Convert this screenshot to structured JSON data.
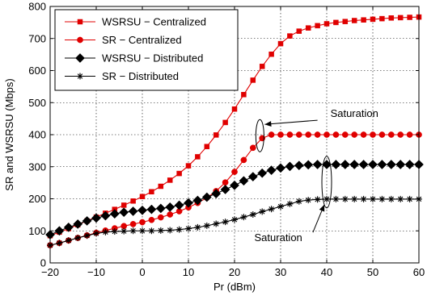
{
  "chart_data": {
    "type": "line",
    "title": "",
    "xlabel": "Pr (dBm)",
    "ylabel": "SR and WSRSU (Mbps)",
    "xlim": [
      -20,
      60
    ],
    "ylim": [
      0,
      800
    ],
    "grid": true,
    "legend_position": "top-left",
    "xticks": [
      -20,
      -10,
      0,
      10,
      20,
      30,
      40,
      50,
      60
    ],
    "yticks": [
      0,
      100,
      200,
      300,
      400,
      500,
      600,
      700,
      800
    ],
    "x": [
      -20,
      -18,
      -16,
      -14,
      -12,
      -10,
      -8,
      -6,
      -4,
      -2,
      0,
      2,
      4,
      6,
      8,
      10,
      12,
      14,
      16,
      18,
      20,
      22,
      24,
      26,
      28,
      30,
      32,
      34,
      36,
      38,
      40,
      42,
      44,
      46,
      48,
      50,
      52,
      54,
      56,
      58,
      60
    ],
    "series": [
      {
        "name": "WSRSU − Centralized",
        "color": "#e00000",
        "marker": "square",
        "values": [
          85,
          96,
          107,
          119,
          131,
          143,
          155,
          167,
          180,
          193,
          207,
          222,
          239,
          258,
          279,
          303,
          331,
          363,
          399,
          438,
          480,
          525,
          570,
          613,
          651,
          684,
          708,
          723,
          733,
          740,
          746,
          750,
          753,
          756,
          758,
          760,
          762,
          764,
          765,
          766,
          767
        ]
      },
      {
        "name": "SR − Centralized",
        "color": "#e00000",
        "marker": "circle",
        "values": [
          55,
          62,
          70,
          78,
          86,
          94,
          101,
          108,
          115,
          121,
          127,
          134,
          142,
          151,
          161,
          173,
          187,
          203,
          224,
          251,
          284,
          321,
          359,
          389,
          400,
          400,
          400,
          400,
          400,
          400,
          400,
          400,
          400,
          400,
          400,
          400,
          400,
          400,
          400,
          400,
          400
        ]
      },
      {
        "name": "WSRSU − Distributed",
        "color": "#000000",
        "marker": "diamond",
        "values": [
          88,
          100,
          111,
          121,
          131,
          140,
          147,
          153,
          158,
          161,
          164,
          167,
          170,
          174,
          180,
          187,
          195,
          205,
          216,
          229,
          242,
          256,
          269,
          280,
          289,
          296,
          301,
          304,
          306,
          307,
          307,
          307,
          307,
          307,
          307,
          307,
          307,
          307,
          307,
          307,
          307
        ]
      },
      {
        "name": "SR − Distributed",
        "color": "#000000",
        "marker": "star",
        "values": [
          55,
          62,
          70,
          78,
          85,
          92,
          96,
          98,
          99,
          100,
          100,
          100,
          101,
          102,
          104,
          107,
          111,
          116,
          122,
          128,
          135,
          143,
          151,
          160,
          168,
          176,
          184,
          192,
          196,
          198,
          199,
          199,
          199,
          199,
          199,
          199,
          199,
          199,
          199,
          199,
          199
        ]
      }
    ],
    "annotations": [
      {
        "text": "Saturation",
        "target_series": "SR − Centralized",
        "x": 27,
        "y": 400
      },
      {
        "text": "Saturation",
        "target_series": "SR − Distributed",
        "x": 40,
        "y": 250
      }
    ]
  }
}
